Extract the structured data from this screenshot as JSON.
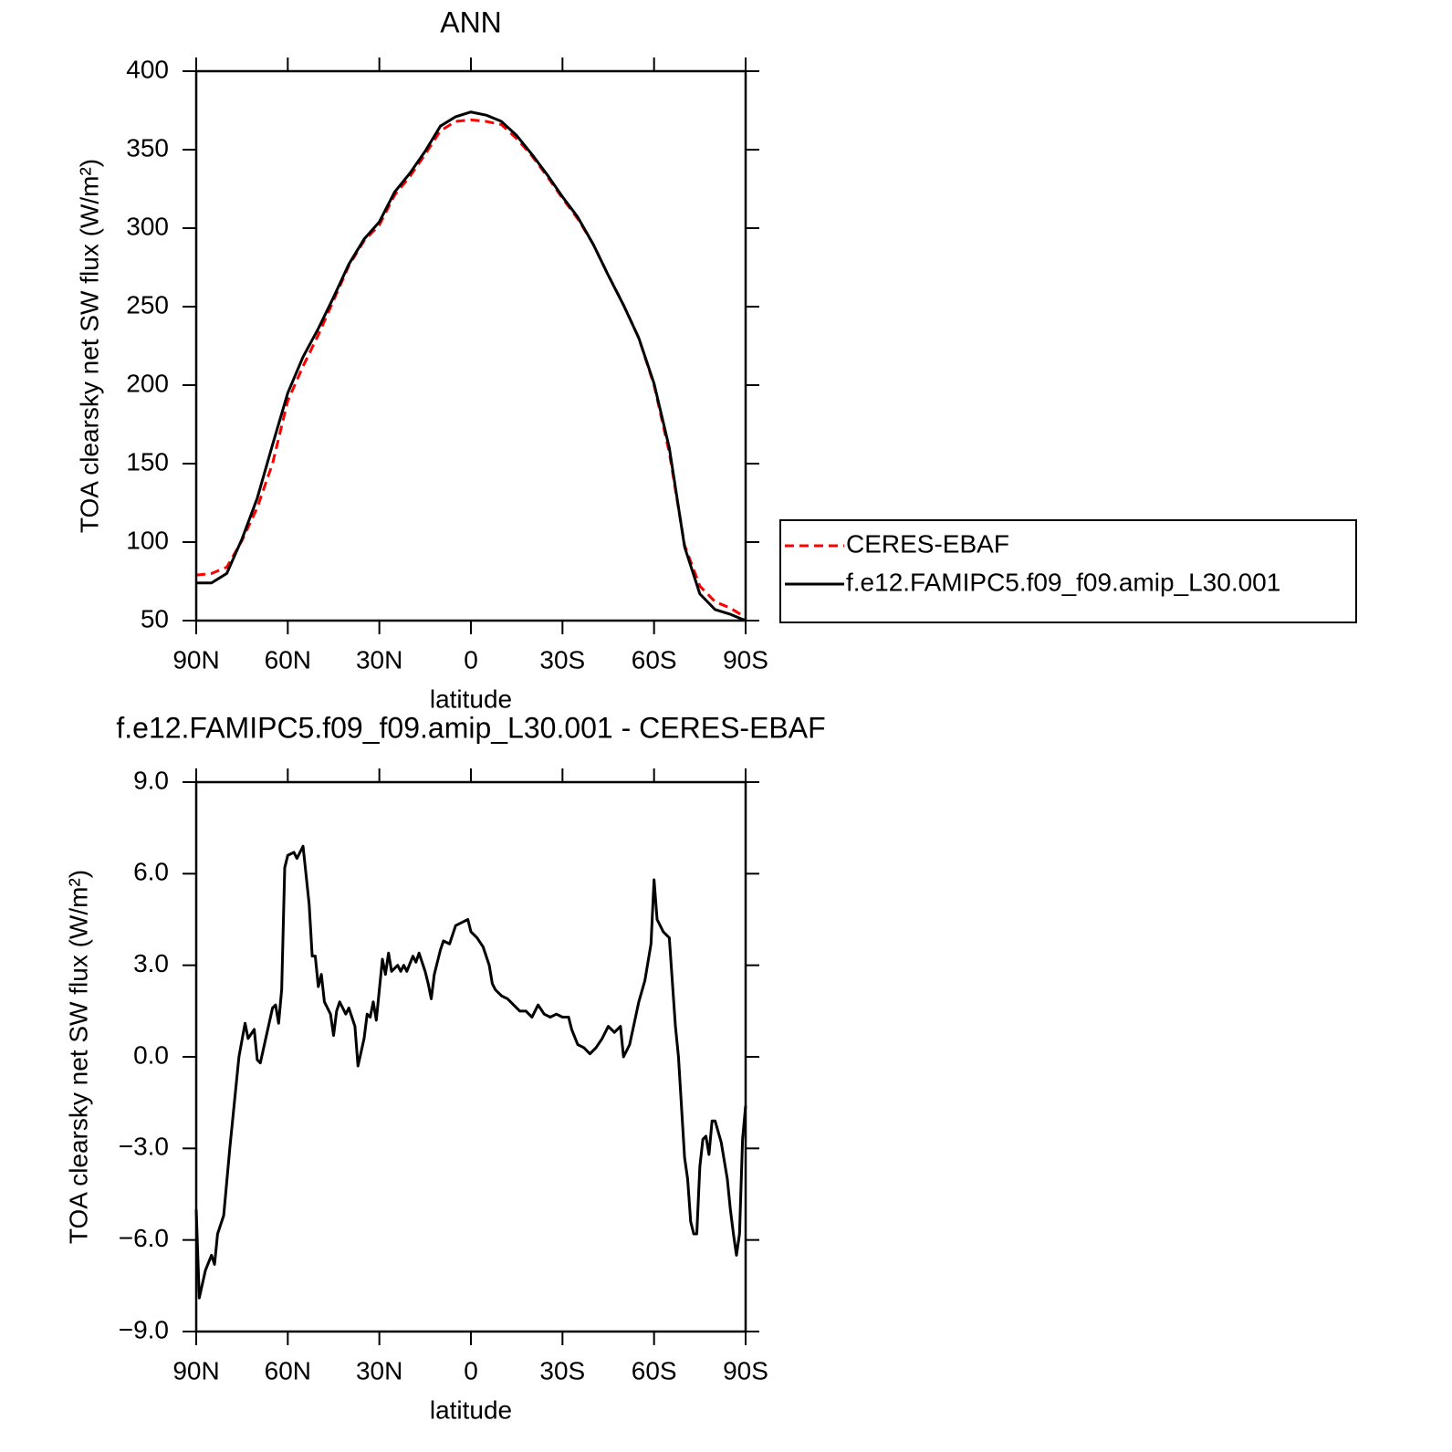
{
  "chart_data": [
    {
      "type": "line",
      "title": "ANN",
      "xlabel": "latitude",
      "ylabel": "TOA clearsky net SW flux (W/m²)",
      "x": [
        90,
        85,
        80,
        75,
        70,
        65,
        60,
        55,
        50,
        45,
        40,
        35,
        30,
        25,
        20,
        15,
        10,
        5,
        0,
        -5,
        -10,
        -15,
        -20,
        -25,
        -30,
        -35,
        -40,
        -45,
        -50,
        -55,
        -60,
        -65,
        -70,
        -75,
        -80,
        -85,
        -90
      ],
      "series": [
        {
          "name": "CERES-EBAF",
          "color": "#ff0000",
          "dash": true,
          "values": [
            79,
            80,
            84,
            101,
            122,
            150,
            190,
            212,
            232,
            254,
            276,
            292,
            302,
            321,
            333,
            347,
            362,
            368,
            369,
            368,
            366,
            357,
            346,
            333,
            319,
            306,
            290,
            270,
            251,
            230,
            200,
            157,
            98,
            72,
            62,
            58,
            52
          ]
        },
        {
          "name": "f.e12.FAMIPC5.f09_f09.amip_L30.001",
          "color": "#000000",
          "dash": false,
          "values": [
            74,
            74,
            80,
            102,
            128,
            162,
            195,
            218,
            236,
            256,
            277,
            293,
            304,
            323,
            335,
            349,
            365,
            371,
            374,
            372,
            368,
            359,
            347,
            334,
            320,
            307,
            290,
            270,
            251,
            230,
            201,
            160,
            97,
            67,
            57,
            54,
            50
          ]
        }
      ],
      "xlim": [
        90,
        -90
      ],
      "xticks": [
        {
          "value": 90,
          "label": "90N"
        },
        {
          "value": 60,
          "label": "60N"
        },
        {
          "value": 30,
          "label": "30N"
        },
        0,
        {
          "value": -30,
          "label": "30S"
        },
        {
          "value": -60,
          "label": "60S"
        },
        {
          "value": -90,
          "label": "90S"
        }
      ],
      "ylim": [
        50,
        400
      ],
      "yticks": [
        50,
        100,
        150,
        200,
        250,
        300,
        350,
        400
      ],
      "legend": "right"
    },
    {
      "type": "line",
      "title": "f.e12.FAMIPC5.f09_f09.amip_L30.001 - CERES-EBAF",
      "xlabel": "latitude",
      "ylabel": "TOA clearsky net SW flux (W/m²)",
      "x": [
        90,
        89,
        87,
        85,
        84,
        83,
        81,
        79,
        77,
        76,
        74,
        73,
        71,
        70,
        69,
        67,
        65,
        64,
        63,
        62,
        61,
        60,
        58,
        57,
        55,
        53,
        52,
        51,
        50,
        49,
        48,
        46,
        45,
        44,
        43,
        41,
        40,
        38,
        37,
        35,
        34,
        33,
        32,
        31,
        29,
        28,
        27,
        26,
        24,
        23,
        22,
        21,
        19,
        18,
        17,
        15,
        14,
        13,
        12,
        10,
        9,
        7,
        5,
        3,
        1,
        0,
        -2,
        -4,
        -6,
        -7,
        -8,
        -10,
        -12,
        -14,
        -16,
        -18,
        -20,
        -22,
        -24,
        -26,
        -28,
        -30,
        -32,
        -33,
        -35,
        -37,
        -39,
        -41,
        -43,
        -45,
        -47,
        -49,
        -50,
        -52,
        -55,
        -57,
        -59,
        -60,
        -61,
        -63,
        -65,
        -67,
        -68,
        -70,
        -71,
        -72,
        -73,
        -74,
        -75,
        -76,
        -77,
        -78,
        -79,
        -80,
        -82,
        -84,
        -85,
        -86,
        -87,
        -88,
        -89,
        -90
      ],
      "values": [
        -5.0,
        -7.9,
        -7.0,
        -6.5,
        -6.8,
        -5.8,
        -5.2,
        -3.0,
        -1.0,
        0.0,
        1.1,
        0.6,
        0.9,
        -0.1,
        -0.2,
        0.7,
        1.6,
        1.7,
        1.1,
        2.2,
        6.2,
        6.6,
        6.7,
        6.5,
        6.9,
        5.0,
        3.3,
        3.3,
        2.3,
        2.7,
        1.8,
        1.4,
        0.7,
        1.5,
        1.8,
        1.4,
        1.6,
        1.0,
        -0.3,
        0.6,
        1.4,
        1.3,
        1.8,
        1.2,
        3.2,
        2.7,
        3.4,
        2.8,
        3.0,
        2.8,
        3.0,
        2.8,
        3.3,
        3.1,
        3.4,
        2.8,
        2.4,
        1.9,
        2.7,
        3.5,
        3.8,
        3.7,
        4.3,
        4.4,
        4.5,
        4.1,
        3.9,
        3.6,
        3.0,
        2.4,
        2.2,
        2.0,
        1.9,
        1.7,
        1.5,
        1.5,
        1.3,
        1.7,
        1.4,
        1.3,
        1.4,
        1.3,
        1.3,
        0.9,
        0.4,
        0.3,
        0.1,
        0.3,
        0.6,
        1.0,
        0.8,
        1.0,
        0.0,
        0.4,
        1.8,
        2.5,
        3.7,
        5.8,
        4.5,
        4.1,
        3.9,
        1.0,
        0.0,
        -3.3,
        -4.0,
        -5.4,
        -5.8,
        -5.8,
        -3.6,
        -2.7,
        -2.6,
        -3.2,
        -2.1,
        -2.1,
        -2.8,
        -4.0,
        -5.0,
        -5.8,
        -6.5,
        -5.8,
        -2.7,
        -1.6
      ],
      "color": "#000000",
      "xlim": [
        90,
        -90
      ],
      "xticks": [
        {
          "value": 90,
          "label": "90N"
        },
        {
          "value": 60,
          "label": "60N"
        },
        {
          "value": 30,
          "label": "30N"
        },
        0,
        {
          "value": -30,
          "label": "30S"
        },
        {
          "value": -60,
          "label": "60S"
        },
        {
          "value": -90,
          "label": "90S"
        }
      ],
      "ylim": [
        -9,
        9
      ],
      "yticks": [
        {
          "value": -9,
          "label": "−9.0"
        },
        {
          "value": -6,
          "label": "−6.0"
        },
        {
          "value": -3,
          "label": "−3.0"
        },
        {
          "value": 0,
          "label": "0.0"
        },
        {
          "value": 3,
          "label": "3.0"
        },
        {
          "value": 6,
          "label": "6.0"
        },
        {
          "value": 9,
          "label": "9.0"
        }
      ]
    }
  ]
}
